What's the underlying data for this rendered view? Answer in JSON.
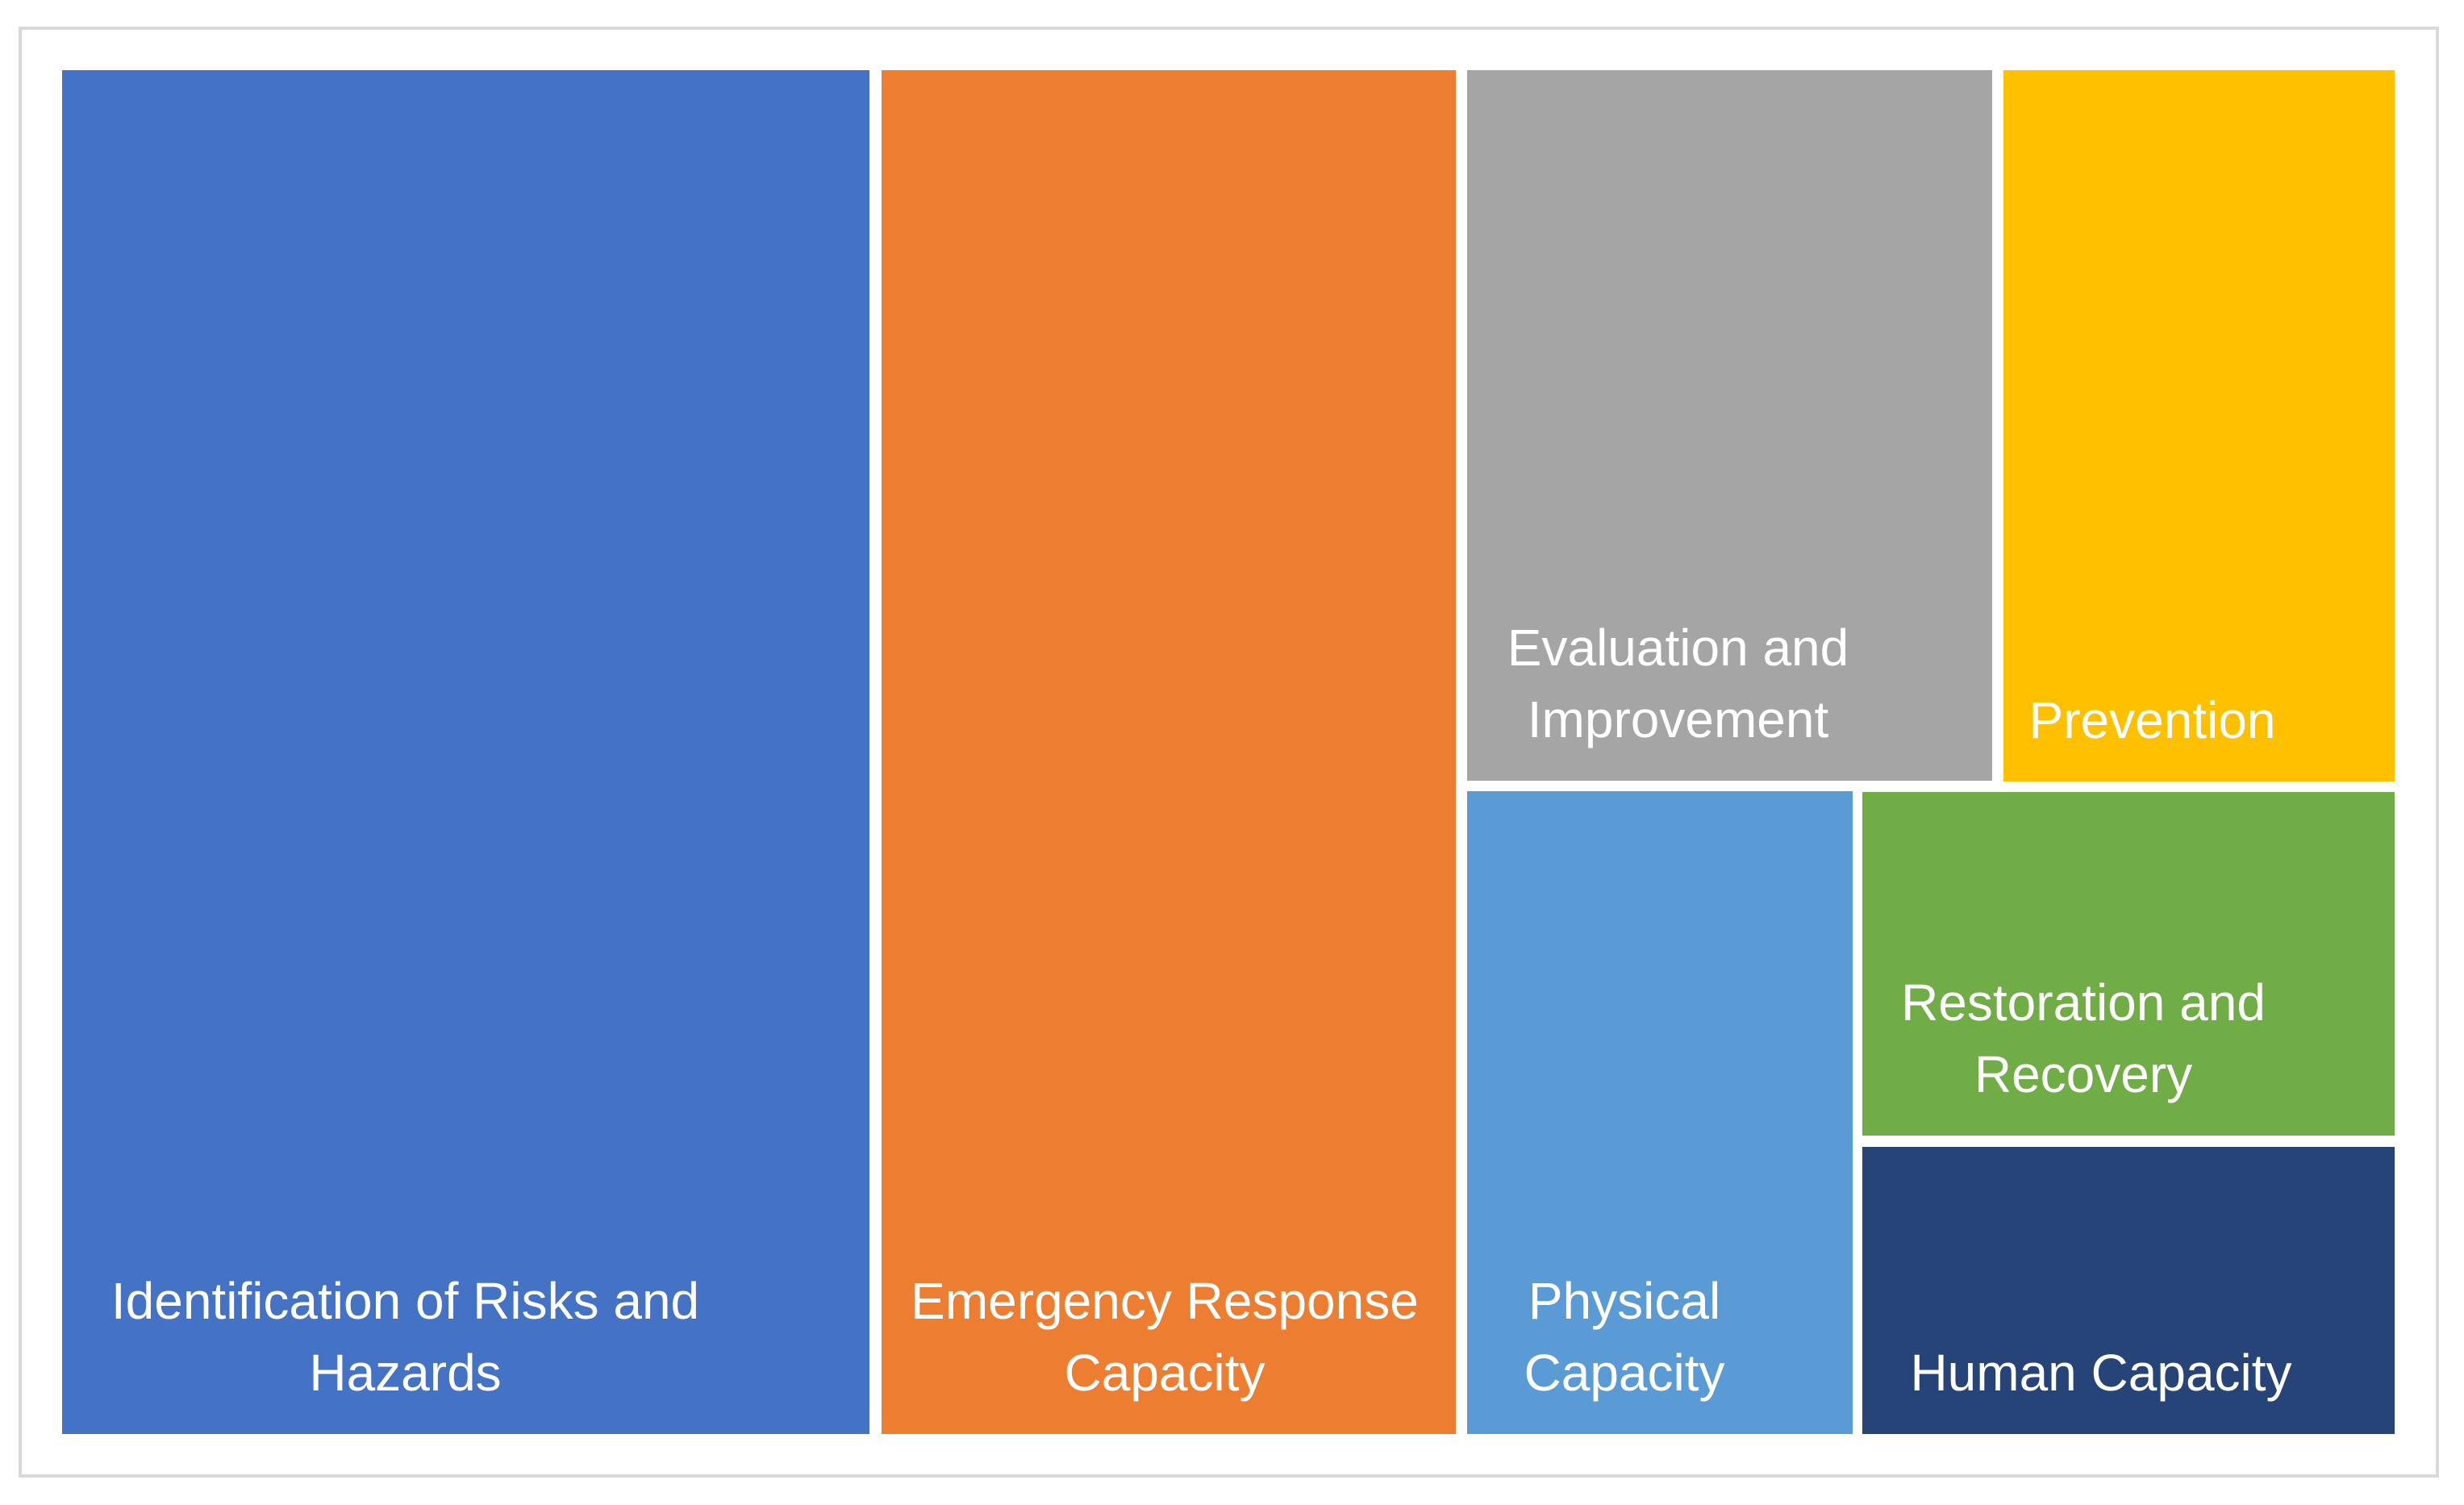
{
  "chart_data": {
    "type": "treemap",
    "title": "",
    "legend_position": "none",
    "background": "#FFFFFF",
    "frame_border_color": "#D9D9D9",
    "label_text_color": "#FFFFFF",
    "items": [
      {
        "label": "Identification of Risks and Hazards",
        "color": "#4472C4",
        "value_rel_pct_est": 35
      },
      {
        "label": "Emergency Response Capacity",
        "color": "#ED7D31",
        "value_rel_pct_est": 25
      },
      {
        "label": "Evaluation and Improvement",
        "color": "#A5A5A5",
        "value_rel_pct_est": 12
      },
      {
        "label": "Prevention",
        "color": "#FFC000",
        "value_rel_pct_est": 9
      },
      {
        "label": "Physical Capacity",
        "color": "#5B9BD5",
        "value_rel_pct_est": 8
      },
      {
        "label": "Restoration and Recovery",
        "color": "#70AD47",
        "value_rel_pct_est": 6
      },
      {
        "label": "Human Capacity",
        "color": "#264478",
        "value_rel_pct_est": 5
      }
    ]
  }
}
